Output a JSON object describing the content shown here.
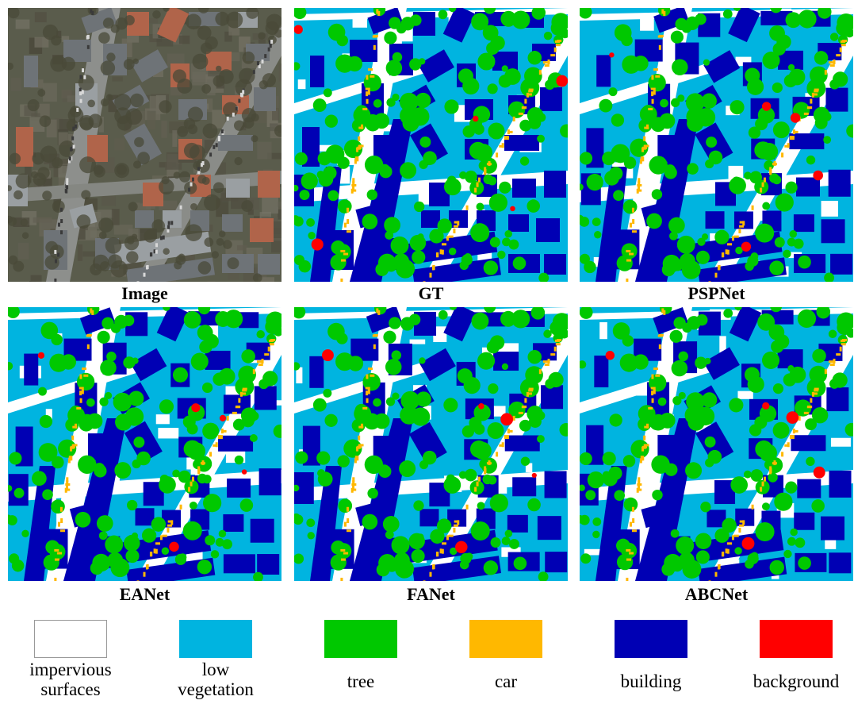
{
  "panels": [
    {
      "kind": "photo",
      "caption": "Image"
    },
    {
      "kind": "map",
      "caption": "GT",
      "variant": 0
    },
    {
      "kind": "map",
      "caption": "PSPNet",
      "variant": 1
    },
    {
      "kind": "map",
      "caption": "EANet",
      "variant": 2
    },
    {
      "kind": "map",
      "caption": "FANet",
      "variant": 3
    },
    {
      "kind": "map",
      "caption": "ABCNet",
      "variant": 4
    }
  ],
  "legend": [
    {
      "line1": "impervious",
      "line2": "surfaces",
      "color": "#ffffff",
      "border": "#999999"
    },
    {
      "line1": "low",
      "line2": "vegetation",
      "color": "#00b4e0"
    },
    {
      "line1": "tree",
      "line2": "",
      "color": "#00c800"
    },
    {
      "line1": "car",
      "line2": "",
      "color": "#ffb800"
    },
    {
      "line1": "building",
      "line2": "",
      "color": "#0000b4"
    },
    {
      "line1": "background",
      "line2": "",
      "color": "#ff0000"
    }
  ],
  "colors": {
    "impervious": "#ffffff",
    "low_vegetation": "#00b4e0",
    "tree": "#00c800",
    "car": "#ffb800",
    "building": "#0000b4",
    "background": "#ff0000"
  }
}
